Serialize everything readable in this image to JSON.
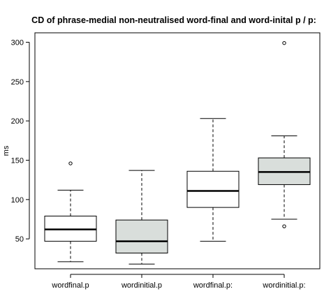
{
  "chart_data": {
    "type": "boxplot",
    "title": "CD of phrase-medial non-neutralised word-final and word-inital p / p:",
    "xlabel": "",
    "ylabel": "ms",
    "ylim": [
      12,
      312
    ],
    "yticks": [
      50,
      100,
      150,
      200,
      250,
      300
    ],
    "grid": false,
    "legend": "none",
    "categories": [
      "wordfinal.p",
      "wordinitial.p",
      "wordfinal.p:",
      "wordinitial.p:"
    ],
    "boxes": [
      {
        "name": "wordfinal.p",
        "whisker_low": 21,
        "q1": 47,
        "median": 62,
        "q3": 79,
        "whisker_high": 112,
        "outliers": [
          146
        ]
      },
      {
        "name": "wordinitial.p",
        "whisker_low": 18,
        "q1": 32,
        "median": 47,
        "q3": 74,
        "whisker_high": 137,
        "outliers": []
      },
      {
        "name": "wordfinal.p:",
        "whisker_low": 47,
        "q1": 90,
        "median": 111,
        "q3": 136,
        "whisker_high": 203,
        "outliers": []
      },
      {
        "name": "wordinitial.p:",
        "whisker_low": 75,
        "q1": 119,
        "median": 135,
        "q3": 153,
        "whisker_high": 181,
        "outliers": [
          66,
          299
        ]
      }
    ],
    "colors": [
      "#ffffff",
      "#d9dedb",
      "#ffffff",
      "#d9dedb"
    ]
  }
}
